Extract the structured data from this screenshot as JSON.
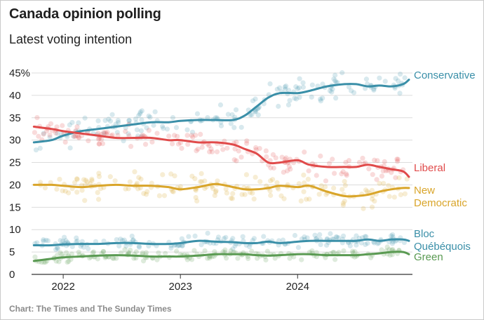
{
  "header": {
    "title": "Canada opinion polling",
    "subtitle": "Latest voting intention"
  },
  "footer": {
    "source": "Chart: The Times and The Sunday Times"
  },
  "chart_data": {
    "type": "line",
    "title": "Canada opinion polling",
    "subtitle": "Latest voting intention",
    "xlabel": "",
    "ylabel": "",
    "xlim": [
      2021.73,
      2024.98
    ],
    "ylim": [
      0,
      45
    ],
    "x_ticks": [
      2022,
      2023,
      2024
    ],
    "x_tick_labels": [
      "2022",
      "2023",
      "2024"
    ],
    "y_ticks": [
      0,
      5,
      10,
      15,
      20,
      25,
      30,
      35,
      40,
      45
    ],
    "y_tick_labels": [
      "0",
      "5",
      "10",
      "15",
      "20",
      "25",
      "30",
      "35",
      "40",
      "45%"
    ],
    "grid": true,
    "legend": "direct labels at right end of lines",
    "series": [
      {
        "name": "Conservative",
        "label_lines": [
          "Conservative"
        ],
        "color": "#3a8fa8",
        "x": [
          2021.75,
          2021.9,
          2022.0,
          2022.15,
          2022.3,
          2022.45,
          2022.6,
          2022.75,
          2022.9,
          2023.0,
          2023.15,
          2023.3,
          2023.45,
          2023.55,
          2023.65,
          2023.75,
          2023.85,
          2024.0,
          2024.1,
          2024.25,
          2024.4,
          2024.5,
          2024.6,
          2024.7,
          2024.8,
          2024.9,
          2024.95
        ],
        "y": [
          29.5,
          30.0,
          31.0,
          32.0,
          32.5,
          33.0,
          33.5,
          34.0,
          34.0,
          34.3,
          34.5,
          34.5,
          34.5,
          35.5,
          37.5,
          39.5,
          40.5,
          40.5,
          41.0,
          42.0,
          42.5,
          42.5,
          42.0,
          42.2,
          42.0,
          42.5,
          43.5
        ],
        "scatter_spread": 2.8
      },
      {
        "name": "Liberal",
        "label_lines": [
          "Liberal"
        ],
        "color": "#e04a4a",
        "x": [
          2021.75,
          2021.9,
          2022.0,
          2022.15,
          2022.3,
          2022.45,
          2022.6,
          2022.75,
          2022.9,
          2023.0,
          2023.15,
          2023.3,
          2023.45,
          2023.55,
          2023.65,
          2023.75,
          2023.85,
          2024.0,
          2024.1,
          2024.25,
          2024.4,
          2024.5,
          2024.6,
          2024.7,
          2024.8,
          2024.9,
          2024.95
        ],
        "y": [
          33.0,
          32.5,
          32.0,
          31.5,
          31.0,
          30.5,
          30.5,
          30.5,
          30.0,
          30.0,
          29.5,
          29.5,
          29.0,
          28.0,
          27.0,
          25.0,
          25.0,
          25.5,
          24.5,
          24.0,
          24.0,
          24.0,
          24.5,
          24.0,
          23.5,
          23.0,
          21.8
        ],
        "scatter_spread": 2.6
      },
      {
        "name": "New Democratic",
        "label_lines": [
          "New",
          "Democratic"
        ],
        "color": "#d9a52a",
        "x": [
          2021.75,
          2021.9,
          2022.0,
          2022.15,
          2022.3,
          2022.45,
          2022.6,
          2022.75,
          2022.9,
          2023.0,
          2023.15,
          2023.3,
          2023.45,
          2023.55,
          2023.65,
          2023.75,
          2023.85,
          2024.0,
          2024.1,
          2024.25,
          2024.4,
          2024.5,
          2024.6,
          2024.7,
          2024.8,
          2024.9,
          2024.95
        ],
        "y": [
          20.0,
          20.0,
          19.8,
          19.5,
          19.8,
          20.0,
          19.8,
          19.8,
          19.5,
          19.0,
          19.5,
          20.2,
          19.5,
          19.0,
          19.0,
          19.3,
          19.8,
          19.5,
          19.8,
          18.5,
          17.5,
          17.5,
          17.8,
          18.5,
          19.0,
          19.3,
          19.3
        ],
        "scatter_spread": 2.8
      },
      {
        "name": "Bloc Québéquois",
        "label_lines": [
          "Bloc",
          "Québéquois"
        ],
        "color": "#3a8fa8",
        "x": [
          2021.75,
          2021.9,
          2022.0,
          2022.15,
          2022.3,
          2022.45,
          2022.6,
          2022.75,
          2022.9,
          2023.0,
          2023.15,
          2023.3,
          2023.45,
          2023.55,
          2023.65,
          2023.75,
          2023.85,
          2024.0,
          2024.1,
          2024.25,
          2024.4,
          2024.5,
          2024.6,
          2024.7,
          2024.8,
          2024.9,
          2024.95
        ],
        "y": [
          6.5,
          6.5,
          6.7,
          6.8,
          6.8,
          7.0,
          7.0,
          6.8,
          6.8,
          7.0,
          7.5,
          7.3,
          7.2,
          7.0,
          7.0,
          7.3,
          7.0,
          7.3,
          7.5,
          7.5,
          7.5,
          7.5,
          7.8,
          7.5,
          7.8,
          7.8,
          7.5
        ],
        "scatter_spread": 1.4
      },
      {
        "name": "Green",
        "label_lines": [
          "Green"
        ],
        "color": "#5a9a52",
        "x": [
          2021.75,
          2021.9,
          2022.0,
          2022.15,
          2022.3,
          2022.45,
          2022.6,
          2022.75,
          2022.9,
          2023.0,
          2023.15,
          2023.3,
          2023.45,
          2023.55,
          2023.65,
          2023.75,
          2023.85,
          2024.0,
          2024.1,
          2024.25,
          2024.4,
          2024.5,
          2024.6,
          2024.7,
          2024.8,
          2024.9,
          2024.95
        ],
        "y": [
          3.0,
          3.5,
          3.8,
          4.0,
          4.2,
          4.3,
          4.2,
          4.0,
          4.0,
          4.0,
          4.2,
          4.5,
          4.5,
          4.5,
          4.3,
          4.2,
          4.3,
          4.5,
          4.5,
          4.3,
          4.3,
          4.3,
          4.5,
          4.7,
          5.0,
          5.0,
          4.5
        ],
        "scatter_spread": 1.2
      }
    ]
  }
}
